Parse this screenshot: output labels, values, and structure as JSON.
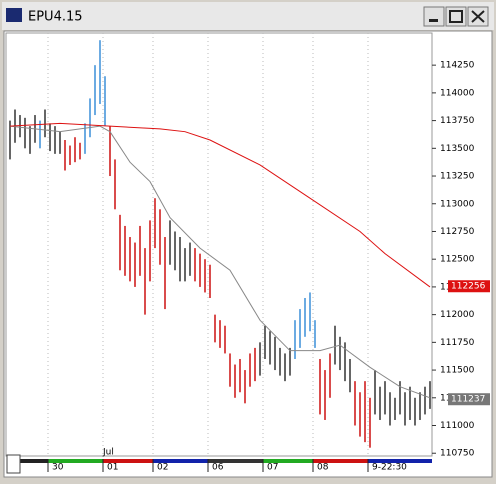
{
  "window": {
    "title": "EPU4.15"
  },
  "chart_data": {
    "type": "bar-range",
    "ylim": [
      110725,
      114540
    ],
    "yticks": [
      110750,
      111000,
      111250,
      111500,
      111750,
      112000,
      112250,
      112500,
      112750,
      113000,
      113250,
      113500,
      113750,
      114000,
      114250
    ],
    "bar_count": 85,
    "series": [
      {
        "color": "#333333",
        "highs": [
          113750,
          113850,
          113800,
          113775,
          113700,
          113800
        ],
        "lows": [
          113400,
          113550,
          113600,
          113500,
          113450,
          113550
        ]
      },
      {
        "color": "#3a8fd8",
        "highs": [
          113750
        ],
        "lows": [
          113500
        ]
      },
      {
        "color": "#333333",
        "highs": [
          113850,
          113725,
          113700,
          113650
        ],
        "lows": [
          113600,
          113475,
          113450,
          113450
        ]
      },
      {
        "color": "#cc1111",
        "highs": [
          113575,
          113525,
          113600,
          113550
        ],
        "lows": [
          113300,
          113350,
          113375,
          113400
        ]
      },
      {
        "color": "#3a8fd8",
        "highs": [
          113725,
          113950,
          114250,
          114475,
          114150
        ],
        "lows": [
          113450,
          113600,
          113800,
          113900,
          113700
        ]
      },
      {
        "color": "#cc1111",
        "highs": [
          113700,
          113400,
          112900,
          112800,
          112700,
          112650,
          112800,
          112600,
          112850,
          113050,
          112950,
          112700
        ],
        "lows": [
          113250,
          112950,
          112400,
          112350,
          112300,
          112250,
          112350,
          112000,
          112300,
          112600,
          112450,
          112050
        ]
      },
      {
        "color": "#333333",
        "highs": [
          112850,
          112750,
          112700,
          112600,
          112650
        ],
        "lows": [
          112450,
          112400,
          112300,
          112300,
          112350
        ]
      },
      {
        "color": "#cc1111",
        "highs": [
          112600,
          112550,
          112500,
          112450,
          112000,
          111950,
          111900,
          111650,
          111550,
          111600,
          111500,
          111650,
          111700
        ],
        "lows": [
          112300,
          112250,
          112200,
          112150,
          111750,
          111700,
          111650,
          111350,
          111250,
          111300,
          111200,
          111350,
          111400
        ]
      },
      {
        "color": "#333333",
        "highs": [
          111750,
          111900,
          111850,
          111800,
          111700,
          111650,
          111700
        ],
        "lows": [
          111450,
          111600,
          111550,
          111500,
          111450,
          111400,
          111450
        ]
      },
      {
        "color": "#3a8fd8",
        "highs": [
          111950,
          112050,
          112150,
          112200,
          111950
        ],
        "lows": [
          111600,
          111700,
          111800,
          111850,
          111700
        ]
      },
      {
        "color": "#cc1111",
        "highs": [
          111600,
          111500,
          111650
        ],
        "lows": [
          111100,
          111050,
          111250
        ]
      },
      {
        "color": "#333333",
        "highs": [
          111900,
          111800,
          111750,
          111600
        ],
        "lows": [
          111550,
          111500,
          111400,
          111300
        ]
      },
      {
        "color": "#cc1111",
        "highs": [
          111400,
          111300,
          111400,
          111250
        ],
        "lows": [
          111000,
          110900,
          110850,
          110800
        ]
      },
      {
        "color": "#333333",
        "highs": [
          111500,
          111350,
          111400,
          111300,
          111250,
          111400,
          111300,
          111350,
          111250,
          111300,
          111350,
          111400
        ],
        "lows": [
          111100,
          111050,
          111100,
          111000,
          111050,
          111100,
          111000,
          111050,
          111000,
          111050,
          111100,
          111150
        ]
      }
    ],
    "lines": [
      {
        "color": "#888888",
        "x": [
          0,
          10,
          18,
          20,
          24,
          28,
          32,
          38,
          44,
          50,
          56,
          62,
          66,
          72,
          78,
          84
        ],
        "values": [
          113700,
          113650,
          113700,
          113650,
          113375,
          113200,
          112875,
          112600,
          112400,
          111950,
          111675,
          111675,
          111725,
          111525,
          111350,
          111250
        ]
      },
      {
        "color": "#dd1111",
        "x": [
          0,
          10,
          20,
          30,
          35,
          40,
          50,
          60,
          70,
          75,
          84
        ],
        "values": [
          113700,
          113725,
          113700,
          113675,
          113650,
          113575,
          113350,
          113050,
          112750,
          112550,
          112250
        ]
      }
    ],
    "price_tags": [
      {
        "value": 112256,
        "color": "#dd1111"
      },
      {
        "value": 111237,
        "color": "#777777"
      }
    ],
    "month_label": {
      "text": "Jul",
      "bar": 19
    },
    "dates": [
      {
        "label": "30",
        "bar": 8
      },
      {
        "label": "01",
        "bar": 19
      },
      {
        "label": "02",
        "bar": 29
      },
      {
        "label": "06",
        "bar": 40
      },
      {
        "label": "07",
        "bar": 51
      },
      {
        "label": "08",
        "bar": 61
      },
      {
        "label": "9-22:30",
        "bar": 72
      }
    ]
  }
}
